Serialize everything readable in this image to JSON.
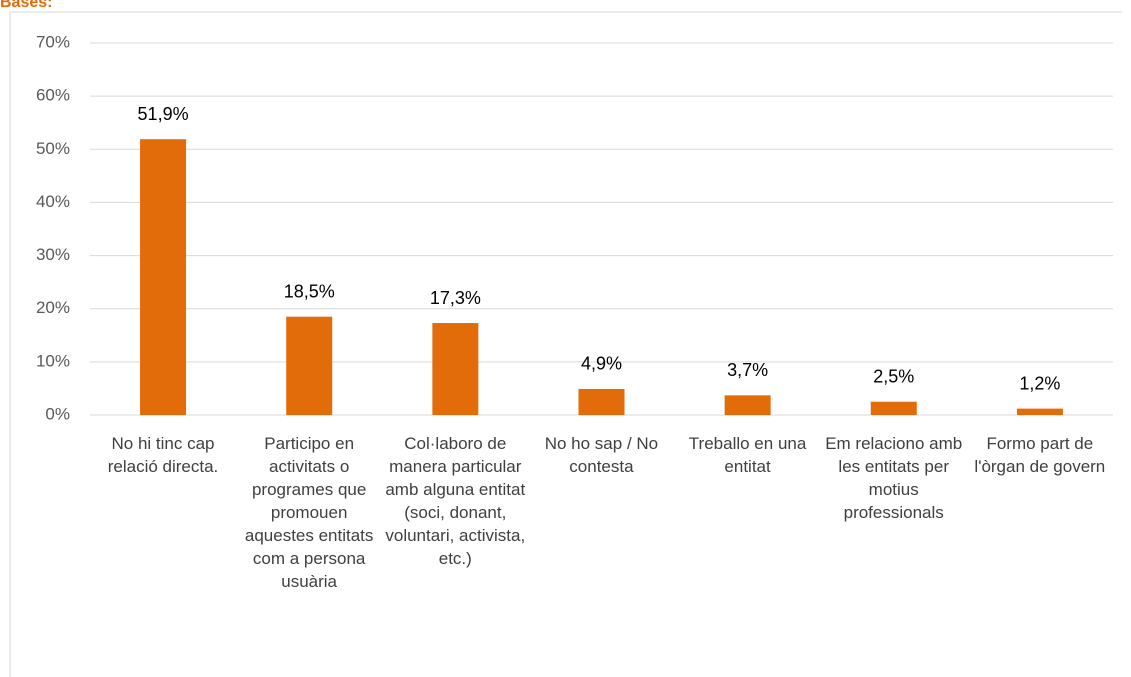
{
  "chart_data": {
    "type": "bar",
    "title": "Bases:",
    "categories": [
      "No hi tinc cap relació directa.",
      "Participo en activitats o programes que promouen aquestes entitats com a persona usuària",
      "Col·laboro de manera particular amb alguna entitat (soci, donant, voluntari, activista, etc.)",
      "No ho sap / No contesta",
      "Treballo en una entitat",
      "Em relaciono amb les entitats per motius professionals",
      "Formo part de l'òrgan de govern"
    ],
    "values": [
      51.9,
      18.5,
      17.3,
      4.9,
      3.7,
      2.5,
      1.2
    ],
    "value_labels": [
      "51,9%",
      "18,5%",
      "17,3%",
      "4,9%",
      "3,7%",
      "2,5%",
      "1,2%"
    ],
    "color": "#e36c0a",
    "ylim": [
      0,
      70
    ],
    "yticks": [
      {
        "value": 0,
        "label": "0%"
      },
      {
        "value": 10,
        "label": "10%"
      },
      {
        "value": 20,
        "label": "20%"
      },
      {
        "value": 30,
        "label": "30%"
      },
      {
        "value": 40,
        "label": "40%"
      },
      {
        "value": 50,
        "label": "50%"
      },
      {
        "value": 60,
        "label": "60%"
      },
      {
        "value": 70,
        "label": "70%"
      }
    ],
    "grid": true
  }
}
